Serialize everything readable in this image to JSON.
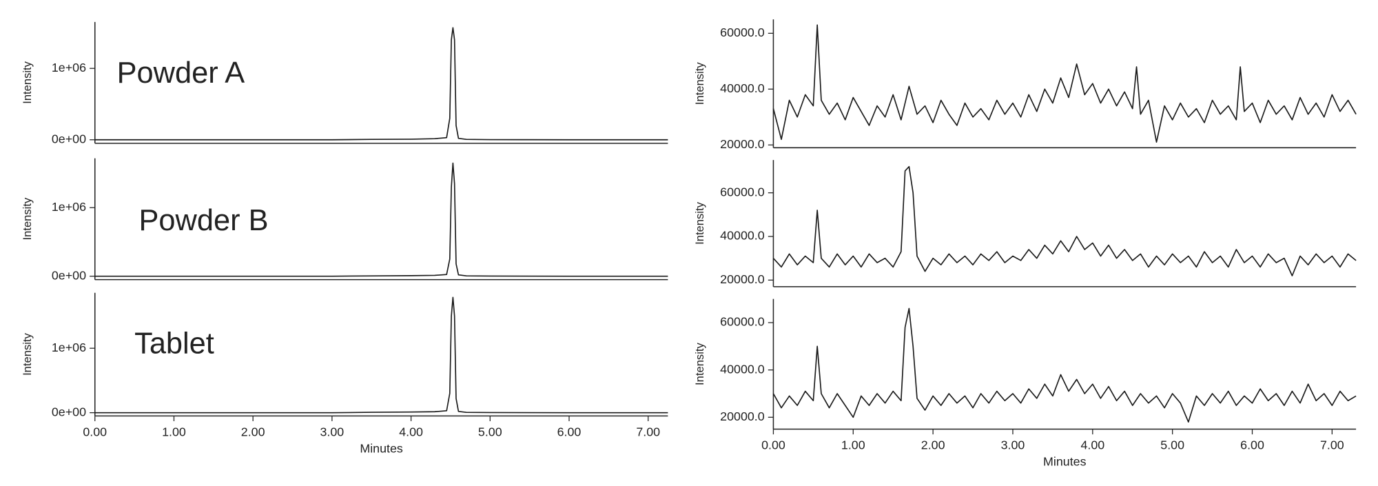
{
  "chart_data": [
    {
      "type": "line",
      "annotation": "Powder A",
      "ylabel": "Intensity",
      "color": "#1a1a1a",
      "xlim": [
        0,
        7.25
      ],
      "ylim": [
        -50000,
        1650000
      ],
      "yticks": [
        {
          "value": 0,
          "label": "0e+00"
        },
        {
          "value": 1000000,
          "label": "1e+06"
        }
      ],
      "x": [
        0,
        1,
        2,
        3,
        3.5,
        4,
        4.3,
        4.45,
        4.49,
        4.51,
        4.53,
        4.55,
        4.57,
        4.6,
        4.7,
        5,
        6,
        7,
        7.25
      ],
      "values": [
        0,
        0,
        0,
        0,
        5000,
        8000,
        15000,
        30000,
        300000,
        1400000,
        1570000,
        1400000,
        200000,
        20000,
        5000,
        2000,
        0,
        0,
        0
      ]
    },
    {
      "type": "line",
      "annotation": "Powder B",
      "ylabel": "Intensity",
      "color": "#1a1a1a",
      "xlim": [
        0,
        7.25
      ],
      "ylim": [
        -50000,
        1720000
      ],
      "yticks": [
        {
          "value": 0,
          "label": "0e+00"
        },
        {
          "value": 1000000,
          "label": "1e+06"
        }
      ],
      "x": [
        0,
        1,
        2,
        3,
        3.6,
        4,
        4.3,
        4.45,
        4.49,
        4.51,
        4.53,
        4.55,
        4.57,
        4.6,
        4.7,
        5,
        6,
        7,
        7.25
      ],
      "values": [
        0,
        0,
        0,
        0,
        5000,
        8000,
        12000,
        25000,
        250000,
        1300000,
        1650000,
        1350000,
        180000,
        20000,
        5000,
        2000,
        0,
        0,
        0
      ]
    },
    {
      "type": "line",
      "annotation": "Tablet",
      "ylabel": "Intensity",
      "xlabel": "Minutes",
      "color": "#1a1a1a",
      "xlim": [
        0,
        7.25
      ],
      "ylim": [
        -50000,
        1860000
      ],
      "yticks": [
        {
          "value": 0,
          "label": "0e+00"
        },
        {
          "value": 1000000,
          "label": "1e+06"
        }
      ],
      "xticks": [
        {
          "value": 0,
          "label": "0.00"
        },
        {
          "value": 1,
          "label": "1.00"
        },
        {
          "value": 2,
          "label": "2.00"
        },
        {
          "value": 3,
          "label": "3.00"
        },
        {
          "value": 4,
          "label": "4.00"
        },
        {
          "value": 5,
          "label": "5.00"
        },
        {
          "value": 6,
          "label": "6.00"
        },
        {
          "value": 7,
          "label": "7.00"
        }
      ],
      "x": [
        0,
        1,
        2,
        3,
        3.5,
        4,
        4.3,
        4.45,
        4.49,
        4.51,
        4.53,
        4.55,
        4.57,
        4.6,
        4.7,
        5,
        6,
        7,
        7.25
      ],
      "values": [
        0,
        0,
        0,
        0,
        6000,
        10000,
        15000,
        30000,
        300000,
        1500000,
        1790000,
        1500000,
        220000,
        20000,
        5000,
        2000,
        0,
        0,
        0
      ]
    },
    {
      "type": "line",
      "ylabel": "Intensity",
      "color": "#1a1a1a",
      "xlim": [
        0,
        7.3
      ],
      "ylim": [
        19000,
        65000
      ],
      "yticks": [
        {
          "value": 20000,
          "label": "20000.0"
        },
        {
          "value": 40000,
          "label": "40000.0"
        },
        {
          "value": 60000,
          "label": "60000.0"
        }
      ],
      "x": [
        0,
        0.1,
        0.2,
        0.3,
        0.4,
        0.5,
        0.55,
        0.6,
        0.7,
        0.8,
        0.9,
        1,
        1.1,
        1.2,
        1.3,
        1.4,
        1.5,
        1.6,
        1.7,
        1.8,
        1.9,
        2,
        2.1,
        2.2,
        2.3,
        2.4,
        2.5,
        2.6,
        2.7,
        2.8,
        2.9,
        3,
        3.1,
        3.2,
        3.3,
        3.4,
        3.5,
        3.6,
        3.7,
        3.8,
        3.9,
        4,
        4.1,
        4.2,
        4.3,
        4.4,
        4.5,
        4.55,
        4.6,
        4.7,
        4.8,
        4.9,
        5,
        5.1,
        5.2,
        5.3,
        5.4,
        5.5,
        5.6,
        5.7,
        5.8,
        5.85,
        5.9,
        6,
        6.1,
        6.2,
        6.3,
        6.4,
        6.5,
        6.6,
        6.7,
        6.8,
        6.9,
        7,
        7.1,
        7.2,
        7.3
      ],
      "values": [
        33000,
        22000,
        36000,
        30000,
        38000,
        34000,
        63000,
        36000,
        31000,
        35000,
        29000,
        37000,
        32000,
        27000,
        34000,
        30000,
        38000,
        29000,
        41000,
        31000,
        34000,
        28000,
        36000,
        31000,
        27000,
        35000,
        30000,
        33000,
        29000,
        36000,
        31000,
        35000,
        30000,
        38000,
        32000,
        40000,
        35000,
        44000,
        37000,
        49000,
        38000,
        42000,
        35000,
        40000,
        34000,
        39000,
        33000,
        48000,
        31000,
        36000,
        21000,
        34000,
        29000,
        35000,
        30000,
        33000,
        28000,
        36000,
        31000,
        34000,
        29000,
        48000,
        32000,
        35000,
        28000,
        36000,
        31000,
        34000,
        29000,
        37000,
        31000,
        35000,
        30000,
        38000,
        32000,
        36000,
        31000
      ]
    },
    {
      "type": "line",
      "ylabel": "Intensity",
      "color": "#1a1a1a",
      "xlim": [
        0,
        7.3
      ],
      "ylim": [
        17000,
        75000
      ],
      "yticks": [
        {
          "value": 20000,
          "label": "20000.0"
        },
        {
          "value": 40000,
          "label": "40000.0"
        },
        {
          "value": 60000,
          "label": "60000.0"
        }
      ],
      "x": [
        0,
        0.1,
        0.2,
        0.3,
        0.4,
        0.5,
        0.55,
        0.6,
        0.7,
        0.8,
        0.9,
        1,
        1.1,
        1.2,
        1.3,
        1.4,
        1.5,
        1.6,
        1.65,
        1.7,
        1.75,
        1.8,
        1.9,
        2,
        2.1,
        2.2,
        2.3,
        2.4,
        2.5,
        2.6,
        2.7,
        2.8,
        2.9,
        3,
        3.1,
        3.2,
        3.3,
        3.4,
        3.5,
        3.6,
        3.7,
        3.8,
        3.9,
        4,
        4.1,
        4.2,
        4.3,
        4.4,
        4.5,
        4.6,
        4.7,
        4.8,
        4.9,
        5,
        5.1,
        5.2,
        5.3,
        5.4,
        5.5,
        5.6,
        5.7,
        5.8,
        5.9,
        6,
        6.1,
        6.2,
        6.3,
        6.4,
        6.5,
        6.6,
        6.7,
        6.8,
        6.9,
        7,
        7.1,
        7.2,
        7.3
      ],
      "values": [
        30000,
        26000,
        32000,
        27000,
        31000,
        28000,
        52000,
        30000,
        26000,
        32000,
        27000,
        31000,
        26000,
        32000,
        28000,
        30000,
        26000,
        33000,
        70000,
        72000,
        60000,
        31000,
        24000,
        30000,
        27000,
        32000,
        28000,
        31000,
        27000,
        32000,
        29000,
        33000,
        28000,
        31000,
        29000,
        34000,
        30000,
        36000,
        32000,
        38000,
        33000,
        40000,
        34000,
        37000,
        31000,
        36000,
        30000,
        34000,
        29000,
        32000,
        26000,
        31000,
        27000,
        32000,
        28000,
        31000,
        26000,
        33000,
        28000,
        31000,
        26000,
        34000,
        28000,
        31000,
        26000,
        32000,
        28000,
        30000,
        22000,
        31000,
        27000,
        32000,
        28000,
        31000,
        26000,
        32000,
        29000
      ]
    },
    {
      "type": "line",
      "ylabel": "Intensity",
      "xlabel": "Minutes",
      "color": "#1a1a1a",
      "xlim": [
        0,
        7.3
      ],
      "ylim": [
        15000,
        70000
      ],
      "yticks": [
        {
          "value": 20000,
          "label": "20000.0"
        },
        {
          "value": 40000,
          "label": "40000.0"
        },
        {
          "value": 60000,
          "label": "60000.0"
        }
      ],
      "xticks": [
        {
          "value": 0,
          "label": "0.00"
        },
        {
          "value": 1,
          "label": "1.00"
        },
        {
          "value": 2,
          "label": "2.00"
        },
        {
          "value": 3,
          "label": "3.00"
        },
        {
          "value": 4,
          "label": "4.00"
        },
        {
          "value": 5,
          "label": "5.00"
        },
        {
          "value": 6,
          "label": "6.00"
        },
        {
          "value": 7,
          "label": "7.00"
        }
      ],
      "x": [
        0,
        0.1,
        0.2,
        0.3,
        0.4,
        0.5,
        0.55,
        0.6,
        0.7,
        0.8,
        0.9,
        1,
        1.1,
        1.2,
        1.3,
        1.4,
        1.5,
        1.6,
        1.65,
        1.7,
        1.75,
        1.8,
        1.9,
        2,
        2.1,
        2.2,
        2.3,
        2.4,
        2.5,
        2.6,
        2.7,
        2.8,
        2.9,
        3,
        3.1,
        3.2,
        3.3,
        3.4,
        3.5,
        3.6,
        3.7,
        3.8,
        3.9,
        4,
        4.1,
        4.2,
        4.3,
        4.4,
        4.5,
        4.6,
        4.7,
        4.8,
        4.9,
        5,
        5.1,
        5.2,
        5.3,
        5.4,
        5.5,
        5.6,
        5.7,
        5.8,
        5.9,
        6,
        6.1,
        6.2,
        6.3,
        6.4,
        6.5,
        6.6,
        6.7,
        6.8,
        6.9,
        7,
        7.1,
        7.2,
        7.3
      ],
      "values": [
        30000,
        24000,
        29000,
        25000,
        31000,
        27000,
        50000,
        30000,
        24000,
        30000,
        25000,
        20000,
        29000,
        25000,
        30000,
        26000,
        31000,
        27000,
        58000,
        66000,
        50000,
        28000,
        23000,
        29000,
        25000,
        30000,
        26000,
        29000,
        24000,
        30000,
        26000,
        31000,
        27000,
        30000,
        26000,
        32000,
        28000,
        34000,
        29000,
        38000,
        31000,
        36000,
        30000,
        34000,
        28000,
        33000,
        27000,
        31000,
        25000,
        30000,
        26000,
        29000,
        24000,
        30000,
        26000,
        18000,
        29000,
        25000,
        30000,
        26000,
        31000,
        25000,
        29000,
        26000,
        32000,
        27000,
        30000,
        25000,
        31000,
        26000,
        34000,
        27000,
        30000,
        25000,
        31000,
        27000,
        29000
      ]
    }
  ]
}
